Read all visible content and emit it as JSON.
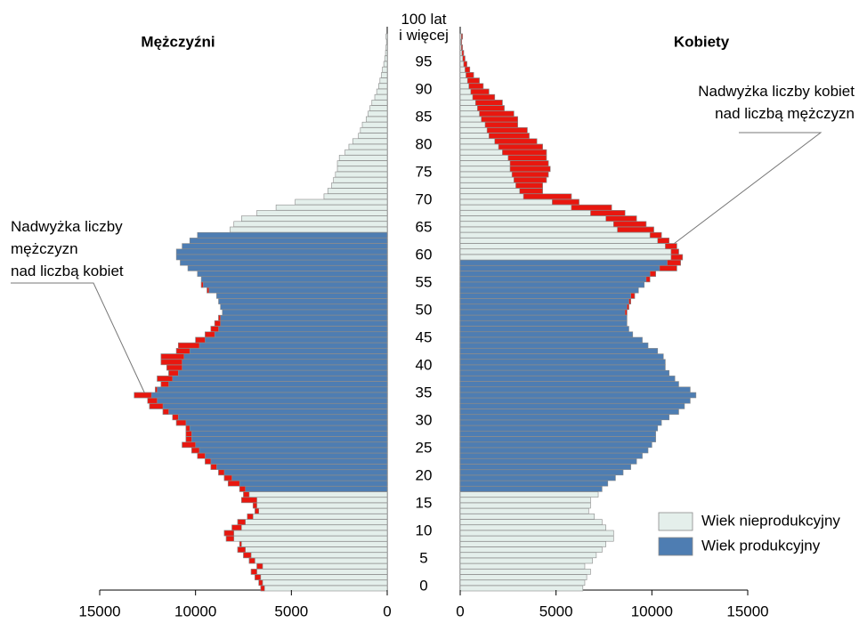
{
  "chart_data": {
    "type": "population-pyramid",
    "categories": [
      0,
      null,
      null,
      null,
      null,
      5,
      null,
      null,
      null,
      null,
      10,
      null,
      null,
      null,
      null,
      15,
      null,
      null,
      null,
      null,
      20,
      null,
      null,
      null,
      null,
      25,
      null,
      null,
      null,
      null,
      30,
      null,
      null,
      null,
      null,
      35,
      null,
      null,
      null,
      null,
      40,
      null,
      null,
      null,
      null,
      45,
      null,
      null,
      null,
      null,
      50,
      null,
      null,
      null,
      null,
      55,
      null,
      null,
      null,
      null,
      60,
      null,
      null,
      null,
      null,
      65,
      null,
      null,
      null,
      null,
      70,
      null,
      null,
      null,
      null,
      75,
      null,
      null,
      null,
      null,
      80,
      null,
      null,
      null,
      null,
      85,
      null,
      null,
      null,
      null,
      90,
      null,
      null,
      null,
      null,
      95,
      null,
      null,
      null,
      null,
      "100 lat\ni więcej"
    ],
    "series": [
      {
        "name": "Mężczyźni",
        "productive_ages": [
          18,
          64
        ],
        "values": [
          6600,
          6700,
          6900,
          7100,
          6800,
          7200,
          7500,
          7800,
          7700,
          8400,
          8500,
          8100,
          7800,
          7300,
          6900,
          7000,
          7600,
          7500,
          7700,
          8300,
          8500,
          8800,
          9200,
          9500,
          9900,
          10200,
          10700,
          10500,
          10500,
          10500,
          11000,
          11200,
          11700,
          12400,
          12500,
          13200,
          12100,
          11800,
          12000,
          11400,
          11500,
          11800,
          11800,
          11000,
          10900,
          10000,
          9500,
          9200,
          9000,
          8800,
          8600,
          8700,
          8800,
          8900,
          9400,
          9700,
          9700,
          9900,
          10400,
          10800,
          11000,
          11000,
          10700,
          10300,
          9900,
          8200,
          8000,
          7600,
          6800,
          5800,
          4800,
          3300,
          3100,
          2900,
          2800,
          2700,
          2600,
          2600,
          2500,
          2200,
          2000,
          1800,
          1500,
          1400,
          1300,
          1100,
          1000,
          900,
          800,
          650,
          550,
          450,
          380,
          300,
          250,
          180,
          130,
          90,
          60,
          40,
          60
        ]
      },
      {
        "name": "Kobiety",
        "productive_ages": [
          18,
          59
        ],
        "values": [
          6400,
          6500,
          6600,
          6800,
          6500,
          6900,
          7100,
          7400,
          7600,
          8000,
          8000,
          7600,
          7400,
          7000,
          6700,
          6800,
          6800,
          7200,
          7400,
          7700,
          8100,
          8500,
          8900,
          9200,
          9500,
          9800,
          10000,
          10200,
          10200,
          10300,
          10500,
          10900,
          11400,
          11700,
          12000,
          12300,
          12000,
          11400,
          11200,
          10900,
          10700,
          10700,
          10600,
          10300,
          9800,
          9500,
          9000,
          8800,
          8700,
          8700,
          8700,
          8800,
          8900,
          9100,
          9300,
          9600,
          9900,
          10200,
          11300,
          11500,
          11600,
          11400,
          11300,
          10900,
          10500,
          10100,
          9700,
          9200,
          8600,
          7900,
          6200,
          5800,
          4300,
          4300,
          4500,
          4600,
          4700,
          4600,
          4500,
          4500,
          4300,
          4000,
          3600,
          3500,
          3000,
          3000,
          2800,
          2300,
          2200,
          1800,
          1500,
          1200,
          1000,
          700,
          500,
          350,
          250,
          180,
          120,
          80,
          120
        ]
      }
    ],
    "xlim": [
      0,
      15000
    ],
    "xticks": [
      0,
      5000,
      10000,
      15000
    ],
    "legend": [
      {
        "name": "Wiek nieprodukcyjny",
        "color": "#e4efeb"
      },
      {
        "name": "Wiek produkcyjny",
        "color": "#4e7db2"
      }
    ],
    "surplus_color": "#e8170f",
    "annotations": [
      "Nadwyżka liczby\nmężczyzn\nnad liczbą kobiet",
      "Nadwyżka liczby kobiet\nnad liczbą mężczyzn"
    ]
  }
}
